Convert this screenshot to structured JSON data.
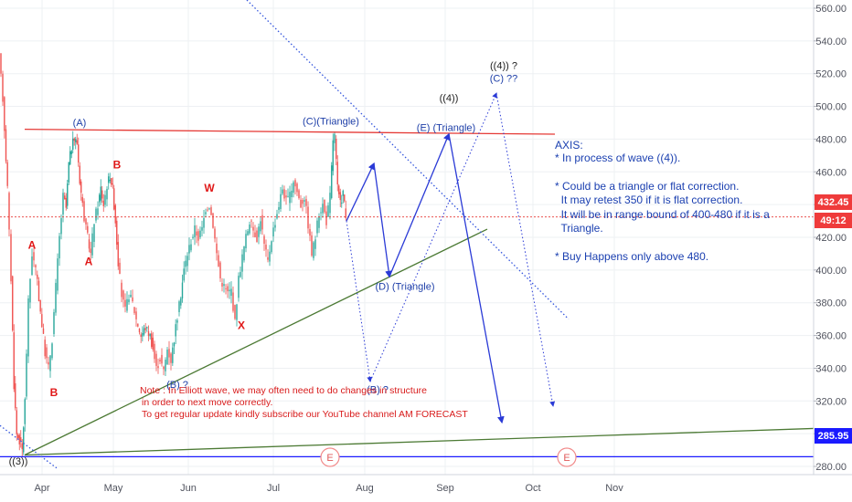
{
  "chart_data": {
    "type": "candlestick",
    "x_ticks": [
      "Apr",
      "May",
      "Jun",
      "Jul",
      "Aug",
      "Sep",
      "Oct",
      "Nov"
    ],
    "y_ticks": [
      560,
      540,
      520,
      500,
      480,
      460,
      440,
      420,
      400,
      380,
      360,
      340,
      320,
      300,
      280
    ],
    "ylim": [
      275,
      565
    ],
    "grid": true,
    "price_badges": {
      "current_price": "432.45",
      "countdown": "49:12",
      "support_level": "285.95"
    },
    "price_series": [
      [
        0,
        530
      ],
      [
        4,
        505
      ],
      [
        9,
        450
      ],
      [
        13,
        395
      ],
      [
        16,
        330
      ],
      [
        19,
        300
      ],
      [
        22,
        296
      ],
      [
        25,
        290
      ],
      [
        28,
        320
      ],
      [
        32,
        380
      ],
      [
        36,
        410
      ],
      [
        40,
        400
      ],
      [
        45,
        375
      ],
      [
        50,
        350
      ],
      [
        54,
        340
      ],
      [
        58,
        358
      ],
      [
        62,
        390
      ],
      [
        66,
        420
      ],
      [
        70,
        445
      ],
      [
        73,
        438
      ],
      [
        76,
        465
      ],
      [
        79,
        475
      ],
      [
        82,
        480
      ],
      [
        85,
        478
      ],
      [
        88,
        455
      ],
      [
        91,
        440
      ],
      [
        95,
        425
      ],
      [
        100,
        410
      ],
      [
        104,
        430
      ],
      [
        108,
        440
      ],
      [
        111,
        450
      ],
      [
        114,
        440
      ],
      [
        118,
        452
      ],
      [
        121,
        458
      ],
      [
        124,
        450
      ],
      [
        127,
        430
      ],
      [
        130,
        405
      ],
      [
        134,
        385
      ],
      [
        138,
        375
      ],
      [
        142,
        385
      ],
      [
        146,
        380
      ],
      [
        150,
        370
      ],
      [
        155,
        360
      ],
      [
        160,
        365
      ],
      [
        165,
        360
      ],
      [
        168,
        352
      ],
      [
        172,
        340
      ],
      [
        176,
        346
      ],
      [
        180,
        338
      ],
      [
        184,
        352
      ],
      [
        188,
        345
      ],
      [
        193,
        365
      ],
      [
        197,
        378
      ],
      [
        202,
        400
      ],
      [
        206,
        410
      ],
      [
        210,
        418
      ],
      [
        214,
        425
      ],
      [
        218,
        420
      ],
      [
        222,
        425
      ],
      [
        226,
        438
      ],
      [
        230,
        440
      ],
      [
        234,
        428
      ],
      [
        238,
        410
      ],
      [
        242,
        395
      ],
      [
        246,
        390
      ],
      [
        250,
        386
      ],
      [
        254,
        388
      ],
      [
        258,
        368
      ],
      [
        262,
        395
      ],
      [
        266,
        408
      ],
      [
        270,
        420
      ],
      [
        274,
        430
      ],
      [
        278,
        425
      ],
      [
        282,
        420
      ],
      [
        286,
        432
      ],
      [
        290,
        415
      ],
      [
        294,
        405
      ],
      [
        298,
        420
      ],
      [
        302,
        430
      ],
      [
        306,
        440
      ],
      [
        310,
        450
      ],
      [
        314,
        442
      ],
      [
        318,
        445
      ],
      [
        322,
        455
      ],
      [
        326,
        448
      ],
      [
        330,
        440
      ],
      [
        334,
        445
      ],
      [
        338,
        428
      ],
      [
        342,
        410
      ],
      [
        346,
        420
      ],
      [
        350,
        435
      ],
      [
        354,
        440
      ],
      [
        358,
        430
      ],
      [
        362,
        445
      ],
      [
        365,
        480
      ],
      [
        367,
        482
      ],
      [
        370,
        450
      ],
      [
        373,
        440
      ],
      [
        376,
        448
      ],
      [
        379,
        432
      ]
    ],
    "lines": [
      {
        "kind": "resistance",
        "color": "#e53935",
        "from": [
          27,
          486
        ],
        "to": [
          607,
          483
        ]
      },
      {
        "kind": "rising-support",
        "color": "#4c7a34",
        "from": [
          27,
          287
        ],
        "to": [
          533,
          425
        ]
      },
      {
        "kind": "long-support",
        "color": "#4c7a34",
        "from": [
          27,
          287
        ],
        "to": [
          932,
          304
        ]
      },
      {
        "kind": "support-285.95",
        "color": "#1a1aff",
        "from": [
          0,
          285.95
        ],
        "to": [
          890,
          285.95
        ]
      },
      {
        "kind": "current-price",
        "color": "#e53935",
        "dashed": true,
        "from": [
          0,
          432.45
        ],
        "to": [
          890,
          432.45
        ]
      },
      {
        "kind": "dotted-downtrend",
        "color": "#3355dd",
        "dashed": true,
        "from": [
          270,
          565
        ],
        "to": [
          622,
          370
        ]
      },
      {
        "kind": "dotted-wedge-arm",
        "color": "#3355dd",
        "dashed": true,
        "from": [
          0,
          305
        ],
        "to": [
          62,
          279
        ]
      }
    ],
    "projections": {
      "solid_path": [
        [
          379,
          430
        ],
        [
          409,
          465
        ],
        [
          426,
          396
        ],
        [
          491,
          483
        ],
        [
          549,
          307
        ]
      ],
      "dotted_path": [
        [
          379,
          430
        ],
        [
          405,
          332
        ],
        [
          543,
          508
        ],
        [
          605,
          317
        ]
      ]
    },
    "wave_labels": [
      {
        "text": "(A)",
        "x": 87,
        "y": 488,
        "color": "blue"
      },
      {
        "text": "(C)(Triangle)",
        "x": 362,
        "y": 489,
        "color": "blue"
      },
      {
        "text": "((4))",
        "x": 491,
        "y": 503,
        "color": "dark"
      },
      {
        "text": "(E) (Triangle)",
        "x": 488,
        "y": 485,
        "color": "blue"
      },
      {
        "text": "((4)) ?",
        "x": 551,
        "y": 523,
        "color": "dark"
      },
      {
        "text": "(C) ??",
        "x": 551,
        "y": 515,
        "color": "blue"
      },
      {
        "text": "(D) (Triangle)",
        "x": 443,
        "y": 388,
        "color": "blue"
      },
      {
        "text": "(B) ?",
        "x": 194,
        "y": 328,
        "color": "blue"
      },
      {
        "text": "(B) ?",
        "x": 413,
        "y": 325,
        "color": "blue"
      },
      {
        "text": "((3))",
        "x": 20,
        "y": 281,
        "color": "dark"
      },
      {
        "text": "W",
        "x": 229,
        "y": 448,
        "color": "red"
      },
      {
        "text": "X",
        "x": 264,
        "y": 364,
        "color": "red"
      },
      {
        "text": "A",
        "x": 35,
        "y": 413,
        "color": "red"
      },
      {
        "text": "A",
        "x": 97,
        "y": 403,
        "color": "red"
      },
      {
        "text": "B",
        "x": 128,
        "y": 462,
        "color": "red"
      },
      {
        "text": "B",
        "x": 59,
        "y": 323,
        "color": "red"
      },
      {
        "text": "W",
        "x": 3,
        "y": 268,
        "color": "red"
      }
    ],
    "event_markers": [
      {
        "label": "E",
        "x": 361
      },
      {
        "label": "E",
        "x": 620
      }
    ]
  },
  "analysis_note": {
    "title": "AXIS:",
    "lines": [
      "* In process of wave ((4)).",
      "",
      "* Could be a triangle or flat correction.",
      "  It may retest 350 if it is flat correction.",
      "  It will be in range bound of 400-480 if it is a",
      "  Triangle.",
      "",
      "* Buy Happens only above 480."
    ]
  },
  "disclaimer_note": {
    "lines": [
      "Note : In Elliott wave, we may often need to do changes in structure",
      "in order to next move correctly.",
      "To get regular update kindly subscribe our YouTube channel AM FORECAST"
    ]
  },
  "colors": {
    "up": "#26a69a",
    "down": "#ef5350",
    "axis_bg": "#ffffff",
    "grid": "#eef0f3"
  }
}
